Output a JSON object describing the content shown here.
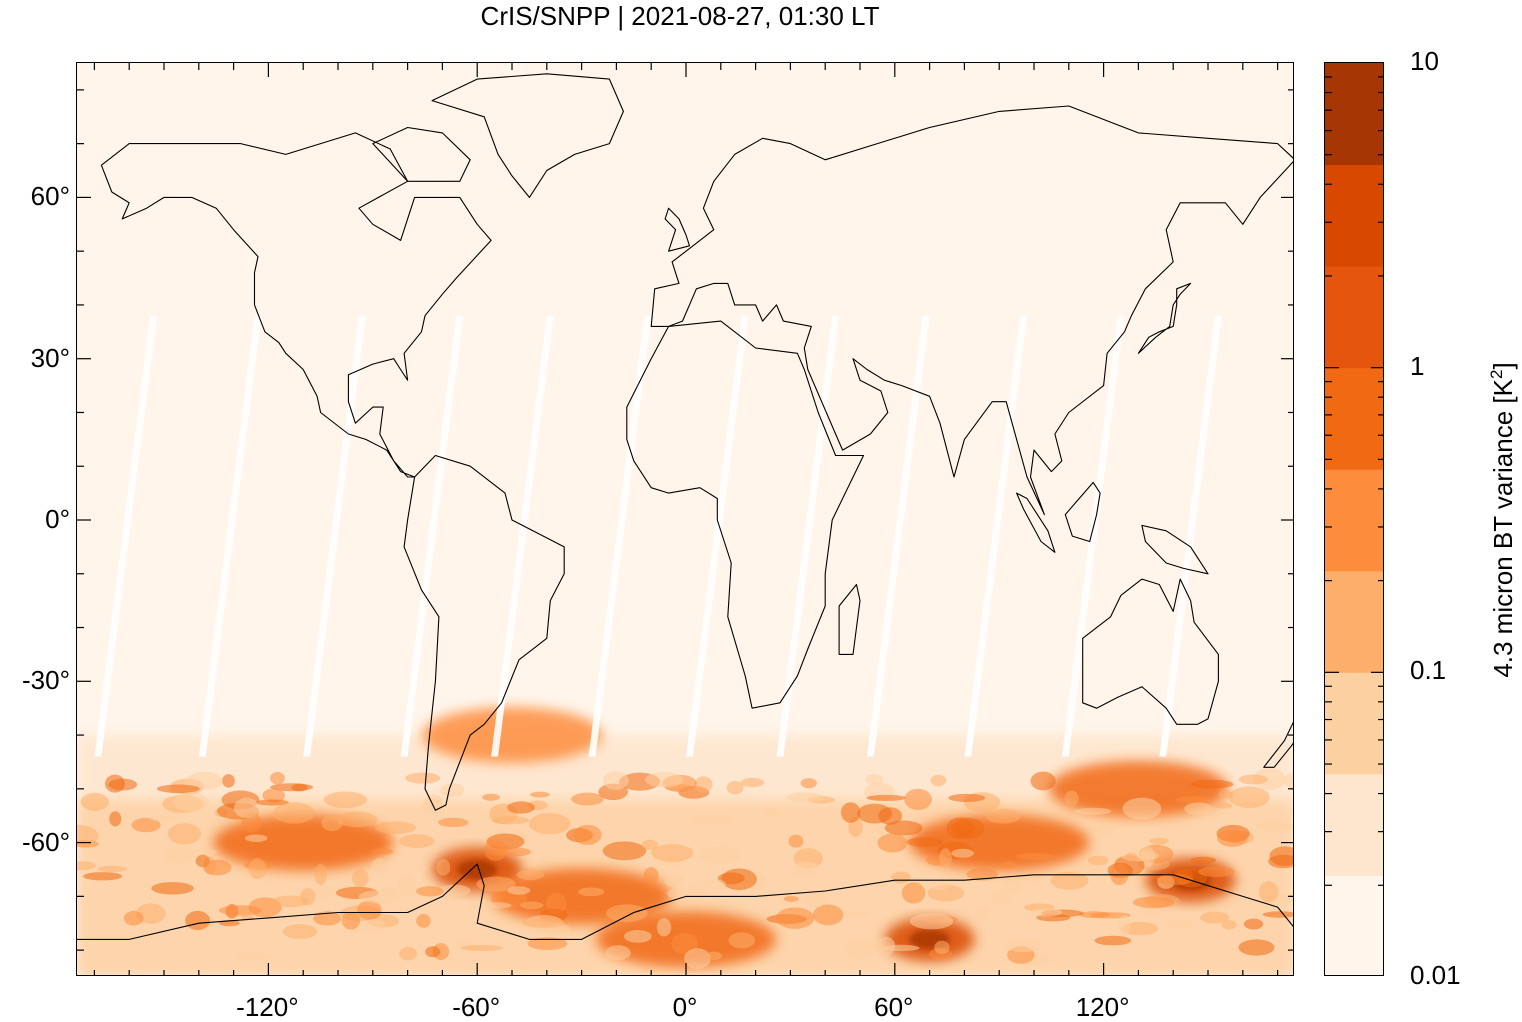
{
  "title": "CrIS/SNPP | 2021-08-27, 01:30 LT",
  "map": {
    "lon_range": [
      -175,
      175
    ],
    "lat_range": [
      -85,
      85
    ],
    "x_ticks": [
      "-120°",
      "-60°",
      "0°",
      "60°",
      "120°"
    ],
    "x_tick_values": [
      -120,
      -60,
      0,
      60,
      120
    ],
    "y_ticks": [
      "60°",
      "30°",
      "0°",
      "-30°",
      "-60°"
    ],
    "y_tick_values": [
      60,
      30,
      0,
      -30,
      -60
    ],
    "background_color": "#fff5eb",
    "coastline_color": "#000000",
    "swath_gap_color": "#ffffff"
  },
  "colorbar": {
    "label": "4.3 micron BT variance [K²]",
    "label_main": "4.3 micron BT variance [K",
    "label_sup": "2",
    "label_end": "]",
    "scale": "log",
    "range": [
      0.01,
      10
    ],
    "tick_labels": [
      "10",
      "1",
      "0.1",
      "0.01"
    ],
    "tick_values": [
      10,
      1,
      0.1,
      0.01
    ],
    "levels": 9,
    "colors": [
      "#fff5eb",
      "#fee6ce",
      "#fdd0a2",
      "#fdae6b",
      "#fd8d3c",
      "#f16913",
      "#e6550d",
      "#d94801",
      "#a63603"
    ]
  },
  "chart_data": {
    "type": "heatmap",
    "title": "CrIS/SNPP | 2021-08-27, 01:30 LT",
    "xlabel": "",
    "ylabel": "",
    "xlim": [
      -175,
      175
    ],
    "ylim": [
      -85,
      85
    ],
    "x_ticks": [
      -120,
      -60,
      0,
      60,
      120
    ],
    "y_ticks": [
      -60,
      -30,
      0,
      30,
      60
    ],
    "colorbar_label": "4.3 micron BT variance [K²]",
    "colorbar_scale": "log",
    "colorbar_range": [
      0.01,
      10
    ],
    "regions": [
      {
        "lon": -110,
        "lat": -60,
        "value": 0.8
      },
      {
        "lon": -60,
        "lat": -65,
        "value": 3
      },
      {
        "lon": -30,
        "lat": -70,
        "value": 0.6
      },
      {
        "lon": 0,
        "lat": -78,
        "value": 0.8
      },
      {
        "lon": 70,
        "lat": -78,
        "value": 3
      },
      {
        "lon": 90,
        "lat": -60,
        "value": 0.6
      },
      {
        "lon": 145,
        "lat": -67,
        "value": 3
      },
      {
        "lon": 130,
        "lat": -50,
        "value": 0.6
      },
      {
        "lon": -50,
        "lat": -40,
        "value": 0.3
      },
      {
        "lon": 0,
        "lat": 20,
        "value": 0.01
      },
      {
        "lon": 0,
        "lat": 60,
        "value": 0.01
      }
    ]
  }
}
